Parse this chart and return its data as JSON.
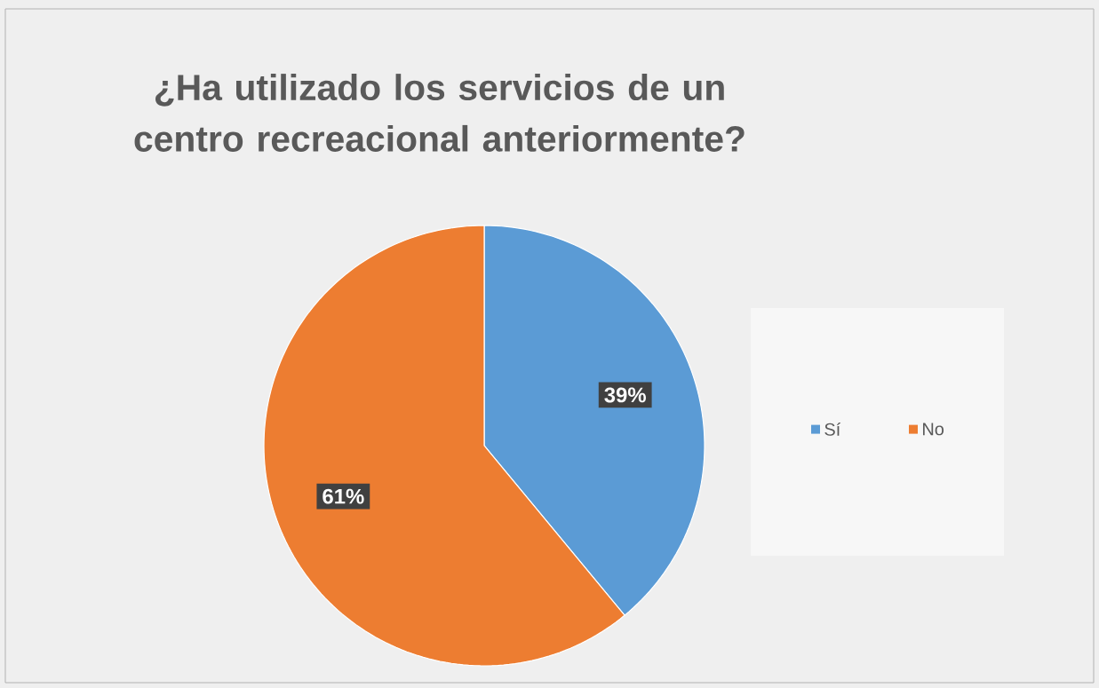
{
  "chart_data": {
    "type": "pie",
    "title": "¿Ha utilizado los servicios de un centro recreacional anteriormente?",
    "categories": [
      "Sí",
      "No"
    ],
    "values": [
      39,
      61
    ],
    "colors": [
      "#5b9bd5",
      "#ed7d31"
    ],
    "value_labels": [
      "39%",
      "61%"
    ],
    "legend": "right"
  }
}
